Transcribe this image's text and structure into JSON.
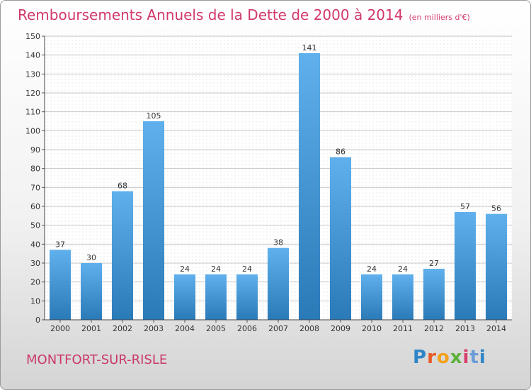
{
  "header": {
    "title": "Remboursements Annuels de la Dette de 2000 à 2014",
    "unit": "(en milliers d'€)"
  },
  "footer": {
    "city": "MONTFORT-SUR-RISLE",
    "logo_letters": [
      "P",
      "r",
      "o",
      "x",
      "i",
      "t",
      "i"
    ]
  },
  "colors": {
    "title": "#d2386c",
    "bar_top": "#5fb0ec",
    "bar_bottom": "#2a7ab8"
  },
  "chart_data": {
    "type": "bar",
    "categories": [
      "2000",
      "2001",
      "2002",
      "2003",
      "2004",
      "2005",
      "2006",
      "2007",
      "2008",
      "2009",
      "2010",
      "2011",
      "2012",
      "2013",
      "2014"
    ],
    "values": [
      37,
      30,
      68,
      105,
      24,
      24,
      24,
      38,
      141,
      86,
      24,
      24,
      27,
      57,
      56
    ],
    "title": "Remboursements Annuels de la Dette de 2000 à 2014",
    "xlabel": "",
    "ylabel": "",
    "ylim": [
      0,
      150
    ],
    "yticks": [
      0,
      10,
      20,
      30,
      40,
      50,
      60,
      70,
      80,
      90,
      100,
      110,
      120,
      130,
      140,
      150
    ],
    "grid": true,
    "legend": "none"
  }
}
